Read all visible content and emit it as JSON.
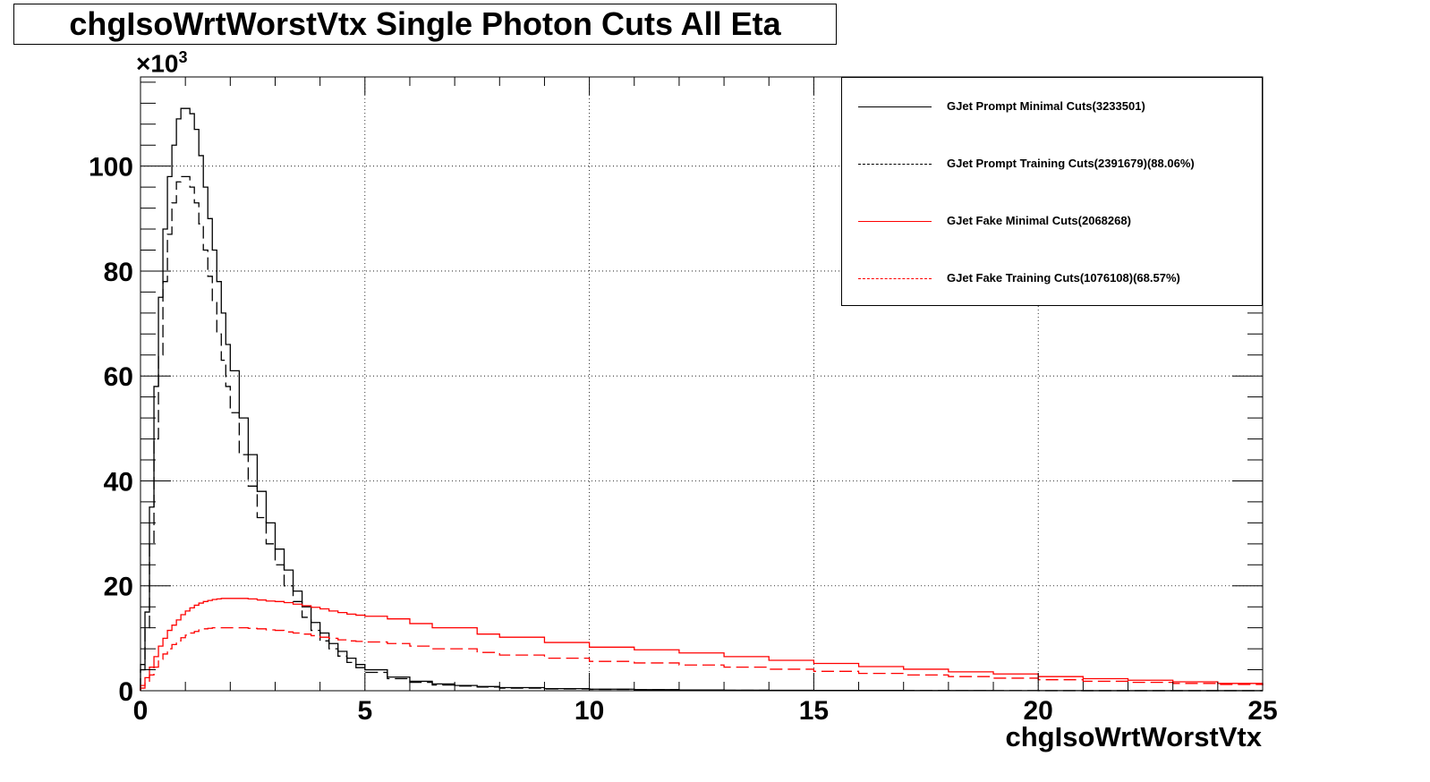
{
  "chart_data": {
    "type": "line",
    "title": "chgIsoWrtWorstVtx Single Photon Cuts All Eta",
    "xlabel": "chgIsoWrtWorstVtx",
    "ylabel": "",
    "y_multiplier": "×10",
    "y_multiplier_exp": "3",
    "xlim": [
      0,
      25
    ],
    "ylim": [
      0,
      117
    ],
    "x_ticks": [
      "0",
      "5",
      "10",
      "15",
      "20",
      "25"
    ],
    "y_ticks": [
      "0",
      "20",
      "40",
      "60",
      "80",
      "100"
    ],
    "grid": true,
    "legend_position": "top-right",
    "x": [
      0,
      0.1,
      0.2,
      0.3,
      0.4,
      0.5,
      0.6,
      0.7,
      0.8,
      0.9,
      1.0,
      1.1,
      1.2,
      1.3,
      1.4,
      1.5,
      1.6,
      1.7,
      1.8,
      1.9,
      2.0,
      2.2,
      2.4,
      2.6,
      2.8,
      3.0,
      3.2,
      3.4,
      3.6,
      3.8,
      4.0,
      4.2,
      4.4,
      4.6,
      4.8,
      5.0,
      5.5,
      6.0,
      6.5,
      7.0,
      7.5,
      8.0,
      9.0,
      10,
      11,
      12,
      13,
      14,
      15,
      16,
      17,
      18,
      19,
      20,
      21,
      22,
      23,
      24,
      25
    ],
    "series": [
      {
        "name": "GJet Prompt Minimal Cuts(3233501)",
        "color": "#000000",
        "dash": "solid",
        "values": [
          5,
          15,
          35,
          58,
          75,
          88,
          98,
          104,
          109,
          111,
          111,
          110,
          107,
          102,
          96,
          90,
          84,
          78,
          72,
          66,
          61,
          52,
          45,
          38,
          32,
          27,
          23,
          19,
          16,
          13,
          11,
          9,
          7.5,
          6.2,
          5,
          4,
          2.6,
          1.8,
          1.3,
          1.0,
          0.8,
          0.6,
          0.4,
          0.3,
          0.2,
          0.15,
          0.1,
          0.08,
          0.06,
          0.05,
          0.04,
          0.03,
          0.02,
          0.02,
          0.01,
          0.01,
          0.01,
          0.01,
          0.01
        ]
      },
      {
        "name": "GJet Prompt Training Cuts(2391679)(88.06%)",
        "color": "#000000",
        "dash": "dashed",
        "values": [
          4,
          12,
          28,
          48,
          64,
          78,
          87,
          93,
          97,
          98,
          98,
          96,
          93,
          89,
          84,
          79,
          74,
          68,
          63,
          58,
          53,
          45,
          39,
          33,
          28,
          24,
          20,
          17,
          14,
          11.5,
          9.5,
          8,
          6.6,
          5.4,
          4.4,
          3.5,
          2.3,
          1.6,
          1.1,
          0.9,
          0.7,
          0.5,
          0.35,
          0.25,
          0.18,
          0.12,
          0.09,
          0.07,
          0.05,
          0.04,
          0.03,
          0.02,
          0.02,
          0.01,
          0.01,
          0.01,
          0.01,
          0.01,
          0.01
        ]
      },
      {
        "name": "GJet Fake Minimal Cuts(2068268)",
        "color": "#ff0000",
        "dash": "solid",
        "values": [
          1,
          2.5,
          4.5,
          6.5,
          8.5,
          10,
          11.5,
          12.5,
          13.5,
          14.5,
          15.2,
          15.8,
          16.3,
          16.7,
          17,
          17.2,
          17.4,
          17.5,
          17.6,
          17.6,
          17.6,
          17.6,
          17.5,
          17.3,
          17.1,
          17,
          16.8,
          16.5,
          16.2,
          15.9,
          15.6,
          15.2,
          14.9,
          14.6,
          14.4,
          14.2,
          13.7,
          12.8,
          12,
          12,
          10.8,
          10.2,
          9.2,
          8.3,
          7.8,
          7.2,
          6.5,
          5.8,
          5.2,
          4.6,
          4.1,
          3.6,
          3.2,
          2.7,
          2.3,
          2.0,
          1.7,
          1.4,
          1.1
        ]
      },
      {
        "name": "GJet Fake Training Cuts(1076108)(68.57%)",
        "color": "#ff0000",
        "dash": "dashed",
        "values": [
          0.5,
          1.5,
          3,
          4.5,
          6,
          7,
          8,
          8.8,
          9.5,
          10.1,
          10.6,
          11,
          11.3,
          11.6,
          11.8,
          11.9,
          12,
          12,
          12,
          12,
          12,
          12,
          11.9,
          11.8,
          11.6,
          11.5,
          11.2,
          11,
          10.8,
          10.5,
          10.2,
          10,
          9.7,
          9.5,
          9.4,
          9.3,
          9.0,
          8.5,
          8,
          8,
          7.3,
          6.8,
          6.2,
          5.6,
          5.3,
          4.9,
          4.5,
          4.1,
          3.7,
          3.3,
          3.0,
          2.7,
          2.4,
          2.1,
          1.8,
          1.6,
          1.4,
          1.2,
          1.0
        ]
      }
    ]
  }
}
